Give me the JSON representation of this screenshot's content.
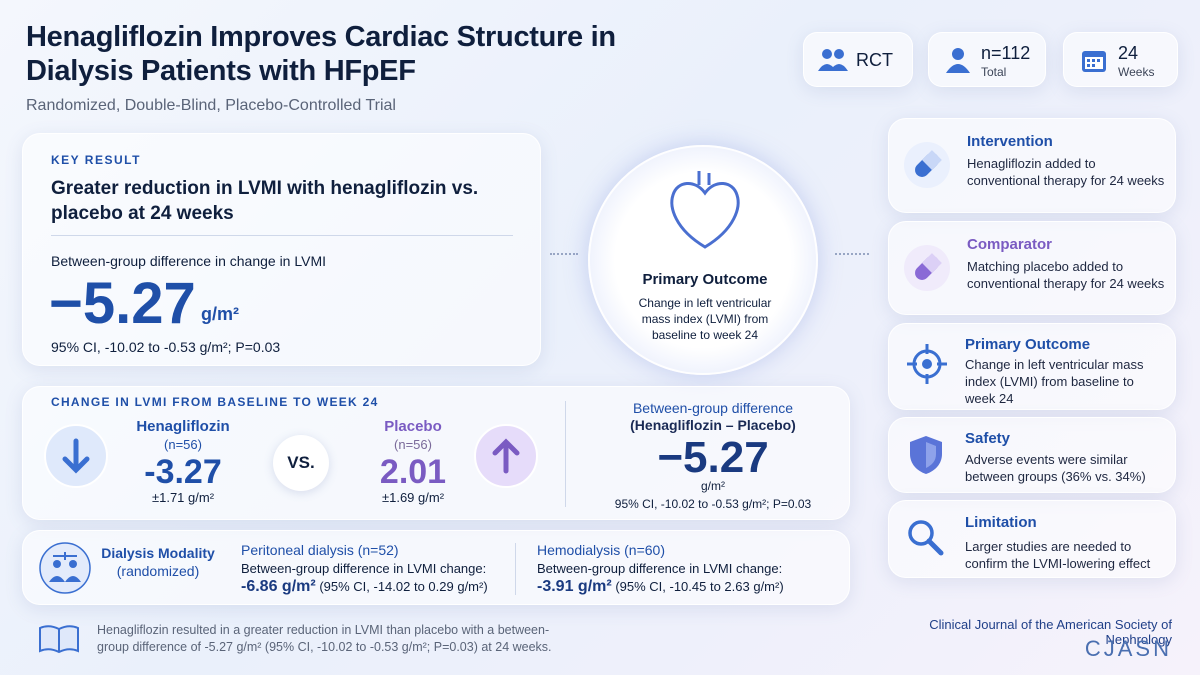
{
  "header": {
    "title": "Henagliflozin Improves Cardiac Structure in Dialysis Patients with HFpEF",
    "subtitle": "Randomized, Double-Blind, Placebo-Controlled Trial"
  },
  "badges": [
    {
      "label": "RCT"
    },
    {
      "label": "n=112",
      "sub": "Total"
    },
    {
      "label": "24",
      "sub": "Weeks"
    }
  ],
  "key_result": {
    "eyebrow": "KEY RESULT",
    "headline": "Greater reduction in LVMI with henagliflozin vs. placebo at 24 weeks",
    "metric_label": "Between-group difference in change in LVMI",
    "value": "−5.27",
    "unit": "g/m²",
    "ci": "95% CI, -10.02 to -0.53 g/m²; P=0.03"
  },
  "center": {
    "title": "Primary Outcome",
    "text": "Change in left ventricular mass index (LVMI) from baseline to week 24"
  },
  "side_cards": [
    {
      "title": "Intervention",
      "text": "Henagliflozin added to conventional therapy for 24 weeks"
    },
    {
      "title": "Comparator",
      "text": "Matching placebo added to conventional therapy for 24 weeks"
    },
    {
      "title": "Primary Outcome",
      "text": "Change in left ventricular mass index (LVMI) from baseline to week 24"
    },
    {
      "title": "Safety",
      "text": "Adverse events were similar between groups (36% vs. 34%)"
    },
    {
      "title": "Limitation",
      "text": "Larger studies are needed to confirm the LVMI-lowering effect"
    }
  ],
  "change": {
    "heading": "CHANGE IN LVMI FROM BASELINE TO WEEK 24",
    "arms": [
      {
        "name": "Henagliflozin",
        "n": "(n=56)",
        "value": "-3.27",
        "sd": "±1.71 g/m²"
      },
      {
        "name": "Placebo",
        "n": "(n=56)",
        "value": "2.01",
        "sd": "±1.69 g/m²"
      }
    ],
    "vs": "VS.",
    "diff": {
      "title": "Between-group difference",
      "subtitle": "(Henagliflozin – Placebo)",
      "value": "−5.27",
      "unit": "g/m²",
      "ci": "95% CI, -10.02 to -0.53 g/m²; P=0.03"
    }
  },
  "modality": {
    "title": "Dialysis Modality",
    "sub": "(randomized)",
    "groups": [
      {
        "name": "Peritoneal dialysis (n=52)",
        "label": "Between-group difference in LVMI change:",
        "value": "-6.86 g/m²",
        "ci": "(95% CI, -14.02 to 0.29 g/m²)"
      },
      {
        "name": "Hemodialysis (n=60)",
        "label": "Between-group difference in LVMI change:",
        "value": "-3.91 g/m²",
        "ci": "(95% CI, -10.45 to 2.63 g/m²)"
      }
    ]
  },
  "footer": {
    "summary": "Henagliflozin resulted in a greater reduction in LVMI than placebo with a between-group difference of -5.27 g/m² (95% CI, -10.02 to -0.53 g/m²; P=0.03) at 24 weeks.",
    "journal": "Clinical Journal of the American Society of Nephrology",
    "logo": "CJASN"
  }
}
